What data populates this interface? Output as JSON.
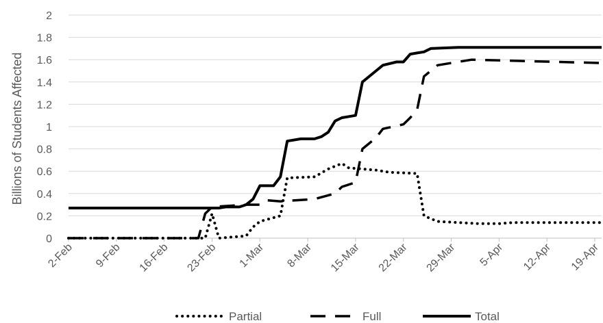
{
  "chart_data": {
    "type": "line",
    "title": "",
    "xlabel": "",
    "ylabel": "Billions of Students Affected",
    "ylim": [
      0,
      2
    ],
    "yticks": [
      "0",
      "0.2",
      "0.4",
      "0.6",
      "0.8",
      "1",
      "1.2",
      "1.4",
      "1.6",
      "1.8",
      "2"
    ],
    "xlim": [
      "2-Feb",
      "20-Apr"
    ],
    "xticks": [
      "2-Feb",
      "9-Feb",
      "16-Feb",
      "23-Feb",
      "1-Mar",
      "8-Mar",
      "15-Mar",
      "22-Mar",
      "29-Mar",
      "5-Apr",
      "12-Apr",
      "19-Apr"
    ],
    "grid": "horizontal",
    "legend_position": "bottom",
    "series": [
      {
        "name": "Partial",
        "style": "dotted",
        "color": "#000000",
        "points": [
          [
            "2-Feb",
            0
          ],
          [
            "22-Feb",
            0
          ],
          [
            "23-Feb",
            0.22
          ],
          [
            "24-Feb",
            0
          ],
          [
            "28-Feb",
            0.02
          ],
          [
            "29-Feb",
            0.1
          ],
          [
            "1-Mar",
            0.15
          ],
          [
            "4-Mar",
            0.2
          ],
          [
            "5-Mar",
            0.54
          ],
          [
            "9-Mar",
            0.55
          ],
          [
            "11-Mar",
            0.62
          ],
          [
            "13-Mar",
            0.67
          ],
          [
            "14-Mar",
            0.63
          ],
          [
            "18-Mar",
            0.61
          ],
          [
            "20-Mar",
            0.59
          ],
          [
            "24-Mar",
            0.58
          ],
          [
            "25-Mar",
            0.2
          ],
          [
            "27-Mar",
            0.15
          ],
          [
            "2-Apr",
            0.13
          ],
          [
            "5-Apr",
            0.13
          ],
          [
            "7-Apr",
            0.14
          ],
          [
            "20-Apr",
            0.14
          ]
        ]
      },
      {
        "name": "Full",
        "style": "dashed",
        "color": "#000000",
        "points": [
          [
            "2-Feb",
            0
          ],
          [
            "21-Feb",
            0
          ],
          [
            "22-Feb",
            0.22
          ],
          [
            "23-Feb",
            0.28
          ],
          [
            "28-Feb",
            0.3
          ],
          [
            "1-Mar",
            0.3
          ],
          [
            "2-Mar",
            0.34
          ],
          [
            "4-Mar",
            0.33
          ],
          [
            "9-Mar",
            0.35
          ],
          [
            "12-Mar",
            0.4
          ],
          [
            "13-Mar",
            0.46
          ],
          [
            "15-Mar",
            0.5
          ],
          [
            "16-Mar",
            0.8
          ],
          [
            "18-Mar",
            0.9
          ],
          [
            "19-Mar",
            0.98
          ],
          [
            "22-Mar",
            1.02
          ],
          [
            "23-Mar",
            1.08
          ],
          [
            "24-Mar",
            1.15
          ],
          [
            "25-Mar",
            1.45
          ],
          [
            "27-Mar",
            1.55
          ],
          [
            "1-Apr",
            1.6
          ],
          [
            "20-Apr",
            1.57
          ]
        ]
      },
      {
        "name": "Total",
        "style": "solid",
        "color": "#000000",
        "points": [
          [
            "2-Feb",
            0.27
          ],
          [
            "24-Feb",
            0.27
          ],
          [
            "25-Feb",
            0.28
          ],
          [
            "27-Feb",
            0.28
          ],
          [
            "28-Feb",
            0.3
          ],
          [
            "29-Feb",
            0.35
          ],
          [
            "1-Mar",
            0.47
          ],
          [
            "3-Mar",
            0.47
          ],
          [
            "4-Mar",
            0.55
          ],
          [
            "5-Mar",
            0.87
          ],
          [
            "7-Mar",
            0.89
          ],
          [
            "9-Mar",
            0.89
          ],
          [
            "10-Mar",
            0.91
          ],
          [
            "11-Mar",
            0.95
          ],
          [
            "12-Mar",
            1.05
          ],
          [
            "13-Mar",
            1.08
          ],
          [
            "15-Mar",
            1.1
          ],
          [
            "16-Mar",
            1.4
          ],
          [
            "18-Mar",
            1.5
          ],
          [
            "19-Mar",
            1.55
          ],
          [
            "21-Mar",
            1.58
          ],
          [
            "22-Mar",
            1.58
          ],
          [
            "23-Mar",
            1.65
          ],
          [
            "24-Mar",
            1.66
          ],
          [
            "25-Mar",
            1.67
          ],
          [
            "26-Mar",
            1.7
          ],
          [
            "30-Mar",
            1.71
          ],
          [
            "20-Apr",
            1.71
          ]
        ]
      }
    ]
  }
}
